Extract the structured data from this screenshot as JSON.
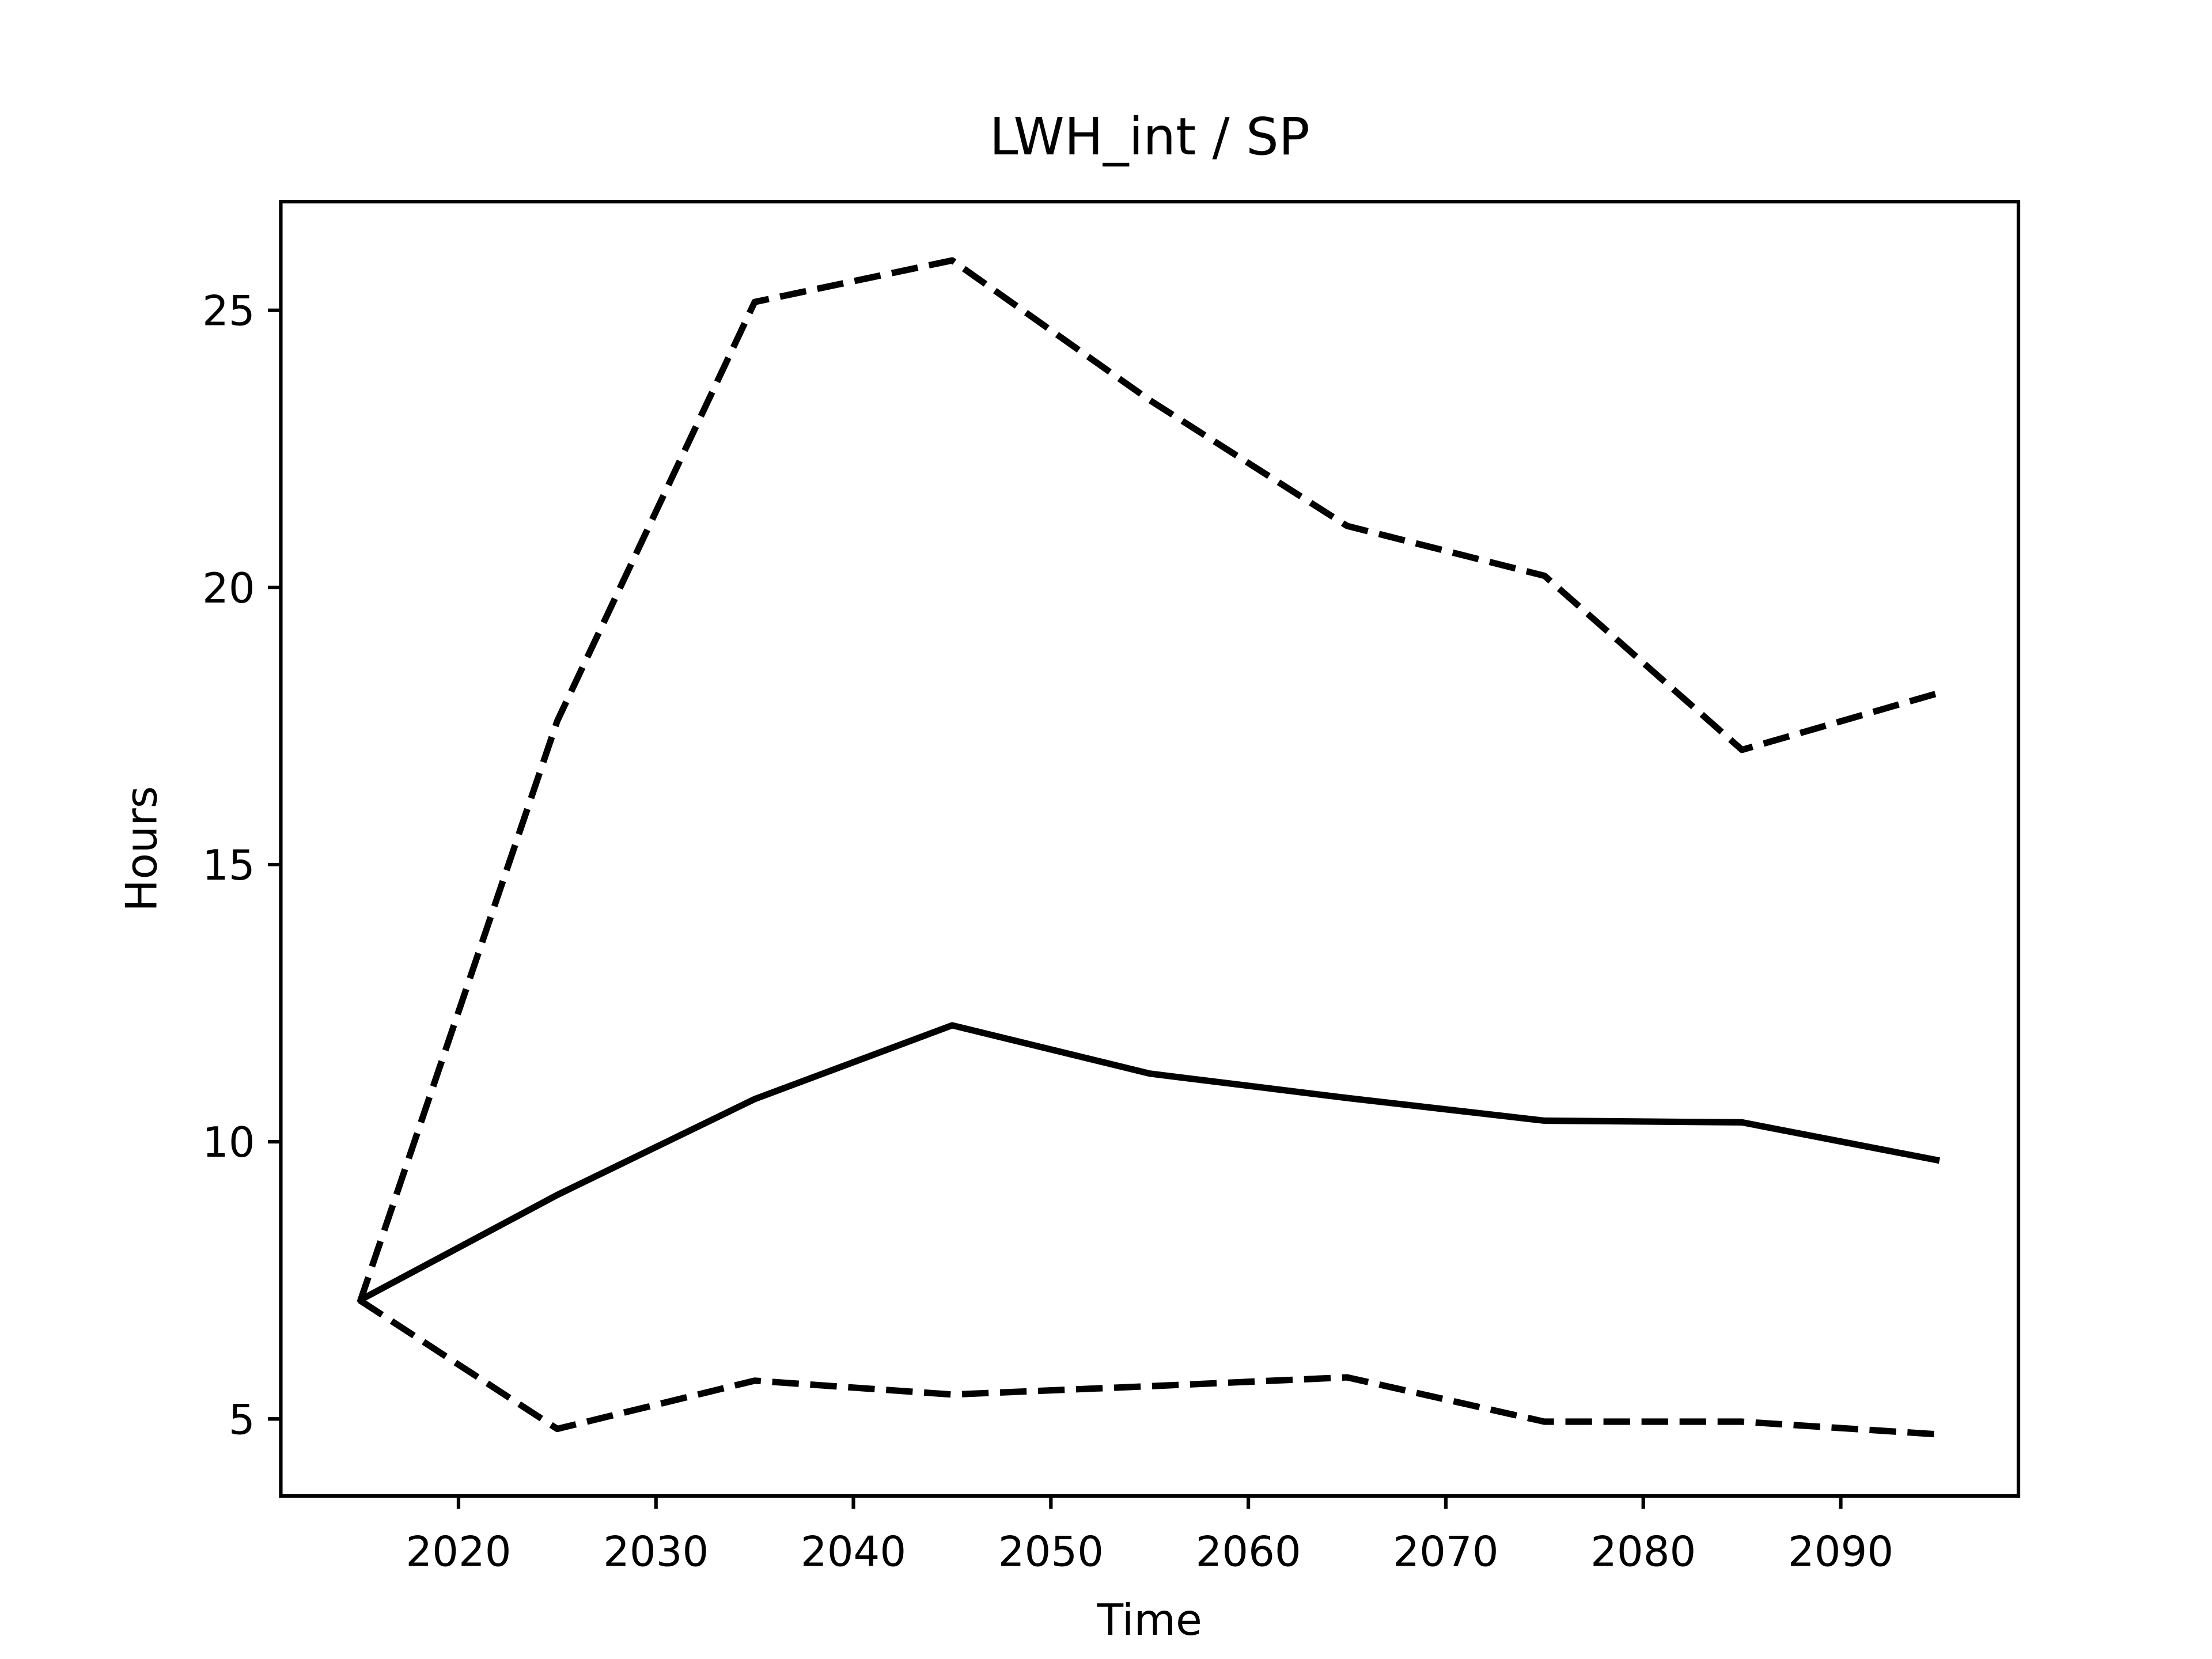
{
  "chart_data": {
    "type": "line",
    "title": "LWH_int / SP",
    "xlabel": "Time",
    "ylabel": "Hours",
    "x": [
      2015,
      2025,
      2035,
      2045,
      2055,
      2065,
      2075,
      2085,
      2095
    ],
    "series": [
      {
        "color": "#000000",
        "style": "dashed",
        "values": [
          7.1,
          17.59,
          25.15,
          25.9,
          23.38,
          21.11,
          20.21,
          17.07,
          18.1
        ]
      },
      {
        "color": "#000000",
        "style": "solid",
        "values": [
          7.14,
          9.04,
          10.77,
          12.1,
          11.23,
          10.79,
          10.38,
          10.35,
          9.66
        ]
      },
      {
        "color": "#000000",
        "style": "dashed",
        "values": [
          7.14,
          4.82,
          5.69,
          5.44,
          5.59,
          5.75,
          4.95,
          4.95,
          4.72
        ]
      }
    ],
    "xlim": [
      2011,
      2099
    ],
    "xticks": [
      2020,
      2030,
      2040,
      2050,
      2060,
      2070,
      2080,
      2090
    ],
    "ylim": [
      3.61,
      26.96
    ],
    "yticks": [
      5,
      10,
      15,
      20,
      25
    ],
    "grid": false
  }
}
